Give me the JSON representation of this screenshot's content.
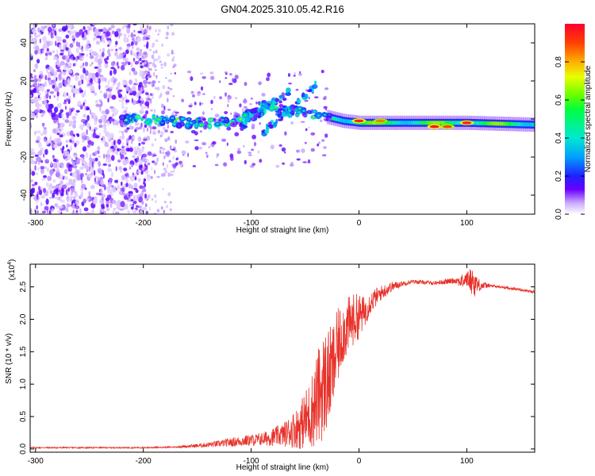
{
  "title": "GN04.2025.310.05.42.R16",
  "chart_data": [
    {
      "type": "heatmap",
      "name": "spectrogram",
      "xlabel": "Height of straight line (km)",
      "ylabel": "Frequency (Hz)",
      "xlim": [
        -305,
        163
      ],
      "ylim": [
        -50,
        50
      ],
      "xticks": [
        -300,
        -200,
        -100,
        0,
        100
      ],
      "yticks": [
        -40,
        -20,
        0,
        20,
        40
      ],
      "colorbar": {
        "label": "Normalized spectral amplitude",
        "range": [
          0.0,
          1.0
        ],
        "ticks": [
          0.0,
          0.2,
          0.4,
          0.6,
          0.8
        ],
        "tick_labels": [
          "0.0",
          "0.2",
          "0.4",
          "0.6",
          "0.8"
        ]
      },
      "features": {
        "noise_region_km": [
          -305,
          -195
        ],
        "sparse_noise_km": [
          -195,
          -170
        ],
        "carrier_track": [
          {
            "x": -215,
            "f": 0
          },
          {
            "x": -185,
            "f": -1
          },
          {
            "x": -160,
            "f": -2
          },
          {
            "x": -135,
            "f": -2
          },
          {
            "x": -115,
            "f": -1
          },
          {
            "x": -100,
            "f": 3
          },
          {
            "x": -85,
            "f": 8
          },
          {
            "x": -75,
            "f": 4
          },
          {
            "x": -60,
            "f": 4
          },
          {
            "x": -45,
            "f": 3
          },
          {
            "x": -30,
            "f": 1
          },
          {
            "x": -15,
            "f": -1
          },
          {
            "x": 0,
            "f": -2
          },
          {
            "x": 40,
            "f": -2
          },
          {
            "x": 100,
            "f": -2
          },
          {
            "x": 163,
            "f": -3
          }
        ],
        "secondary_tracks": [
          {
            "x": [
              -90,
              -40
            ],
            "f": [
              -8,
              18
            ]
          },
          {
            "x": [
              -110,
              -60
            ],
            "f": [
              -4,
              16
            ]
          }
        ],
        "peak_points": [
          {
            "x": 0,
            "f": -1,
            "amp": 0.95
          },
          {
            "x": 20,
            "f": -1,
            "amp": 0.85
          },
          {
            "x": 70,
            "f": -4,
            "amp": 0.97
          },
          {
            "x": 82,
            "f": -4,
            "amp": 0.9
          },
          {
            "x": 100,
            "f": -2,
            "amp": 0.95
          }
        ]
      }
    },
    {
      "type": "line",
      "name": "snr",
      "xlabel": "Height of straight line (km)",
      "ylabel": "SNR (10 * v/v)",
      "y_multiplier_label": "(x10",
      "y_multiplier_exp": "4",
      "y_multiplier_close": ")",
      "xlim": [
        -305,
        163
      ],
      "ylim": [
        -0.05,
        2.85
      ],
      "xticks": [
        -300,
        -200,
        -100,
        0,
        100
      ],
      "yticks": [
        0.0,
        0.5,
        1.0,
        1.5,
        2.0,
        2.5
      ],
      "ytick_labels": [
        "0.0",
        "0.5",
        "1.0",
        "1.5",
        "2.0",
        "2.5"
      ],
      "color": "#e8322a",
      "envelope": {
        "x": [
          -305,
          -250,
          -200,
          -170,
          -150,
          -130,
          -110,
          -90,
          -70,
          -55,
          -45,
          -38,
          -32,
          -25,
          -20,
          -15,
          -10,
          -5,
          0,
          5,
          10,
          20,
          30,
          40,
          50,
          60,
          70,
          80,
          90,
          95,
          100,
          104,
          108,
          112,
          120,
          130,
          145,
          163
        ],
        "mean": [
          0.02,
          0.02,
          0.02,
          0.03,
          0.05,
          0.08,
          0.12,
          0.15,
          0.22,
          0.35,
          0.55,
          0.8,
          1.0,
          1.2,
          1.55,
          1.8,
          1.9,
          2.0,
          2.05,
          2.1,
          2.25,
          2.4,
          2.5,
          2.55,
          2.58,
          2.57,
          2.56,
          2.58,
          2.6,
          2.58,
          2.62,
          2.6,
          2.55,
          2.52,
          2.52,
          2.5,
          2.47,
          2.42
        ],
        "spread": [
          0.01,
          0.01,
          0.01,
          0.01,
          0.03,
          0.05,
          0.08,
          0.1,
          0.18,
          0.35,
          0.55,
          0.75,
          0.85,
          0.7,
          0.6,
          0.5,
          0.45,
          0.4,
          0.35,
          0.25,
          0.18,
          0.12,
          0.08,
          0.04,
          0.03,
          0.03,
          0.03,
          0.04,
          0.05,
          0.1,
          0.12,
          0.2,
          0.22,
          0.08,
          0.03,
          0.02,
          0.02,
          0.02
        ]
      }
    }
  ]
}
